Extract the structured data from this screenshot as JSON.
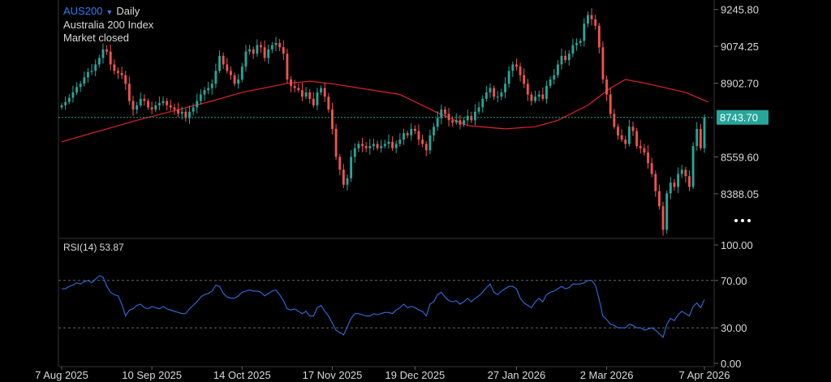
{
  "header": {
    "symbol": "AUS200",
    "interval": "Daily",
    "description": "Australia 200 Index",
    "status": "Market closed",
    "rsi_label": "RSI(14) 53.87"
  },
  "colors": {
    "up": "#26a69a",
    "down": "#ef5350",
    "ma": "#e0232a",
    "rsi": "#2f6fe0",
    "price_line": "#26a69a",
    "grid": "#333333",
    "text": "#d9d9d9",
    "accent": "#2f7ff7"
  },
  "chart_data": [
    {
      "type": "candlestick",
      "title": "AUS200 Daily",
      "current_price": 8743.7,
      "current_price_label": "8743.70",
      "y_ticks": [
        {
          "value": 9245.8,
          "label": "9245.80"
        },
        {
          "value": 9074.25,
          "label": "9074.25"
        },
        {
          "value": 8902.7,
          "label": "8902.70"
        },
        {
          "value": 8559.6,
          "label": "8559.60"
        },
        {
          "value": 8388.05,
          "label": "8388.05"
        }
      ],
      "ylim": [
        8180,
        9290
      ],
      "x_ticks": [
        "7 Aug 2025",
        "10 Sep 2025",
        "14 Oct 2025",
        "17 Nov 2025",
        "19 Dec 2025",
        "27 Jan 2026",
        "2 Mar 2026",
        "7 Apr 2026"
      ],
      "x_tick_index": [
        0,
        24,
        48,
        72,
        94,
        121,
        145,
        171
      ],
      "closes": [
        8800,
        8815,
        8835,
        8860,
        8885,
        8900,
        8930,
        8955,
        8960,
        8990,
        9020,
        9060,
        9050,
        8990,
        8960,
        8950,
        8940,
        8900,
        8820,
        8780,
        8800,
        8830,
        8820,
        8790,
        8780,
        8800,
        8810,
        8820,
        8800,
        8790,
        8780,
        8760,
        8770,
        8740,
        8770,
        8790,
        8820,
        8850,
        8870,
        8880,
        8900,
        8960,
        9030,
        8990,
        8960,
        8940,
        8900,
        8920,
        8980,
        9050,
        9060,
        9040,
        9080,
        9070,
        9020,
        9060,
        9080,
        9090,
        9070,
        9040,
        8920,
        8890,
        8880,
        8870,
        8840,
        8860,
        8830,
        8800,
        8860,
        8880,
        8840,
        8780,
        8690,
        8560,
        8500,
        8430,
        8460,
        8560,
        8600,
        8620,
        8610,
        8600,
        8610,
        8620,
        8600,
        8610,
        8620,
        8630,
        8600,
        8620,
        8640,
        8670,
        8660,
        8690,
        8680,
        8640,
        8620,
        8590,
        8660,
        8700,
        8740,
        8780,
        8760,
        8730,
        8720,
        8730,
        8710,
        8730,
        8750,
        8730,
        8770,
        8790,
        8830,
        8860,
        8880,
        8840,
        8840,
        8860,
        8900,
        8960,
        8990,
        8980,
        8940,
        8900,
        8850,
        8820,
        8840,
        8850,
        8830,
        8890,
        8920,
        8940,
        8990,
        9030,
        9010,
        9040,
        9080,
        9090,
        9100,
        9180,
        9220,
        9200,
        9170,
        9070,
        8920,
        8850,
        8760,
        8700,
        8660,
        8640,
        8620,
        8700,
        8680,
        8610,
        8600,
        8580,
        8530,
        8480,
        8400,
        8330,
        8220,
        8390,
        8440,
        8420,
        8480,
        8500,
        8470,
        8420,
        8610,
        8690,
        8600,
        8743.7
      ],
      "moving_average": {
        "start": 8630,
        "points": [
          [
            0,
            8630
          ],
          [
            20,
            8730
          ],
          [
            40,
            8820
          ],
          [
            48,
            8860
          ],
          [
            60,
            8902
          ],
          [
            66,
            8912
          ],
          [
            72,
            8900
          ],
          [
            90,
            8850
          ],
          [
            100,
            8765
          ],
          [
            108,
            8705
          ],
          [
            118,
            8690
          ],
          [
            126,
            8700
          ],
          [
            132,
            8730
          ],
          [
            140,
            8800
          ],
          [
            146,
            8880
          ],
          [
            150,
            8920
          ],
          [
            156,
            8900
          ],
          [
            166,
            8860
          ],
          [
            172,
            8815
          ]
        ]
      }
    },
    {
      "type": "line",
      "title": "RSI(14)",
      "last_value": 53.87,
      "y_ticks": [
        {
          "value": 100,
          "label": "100.00"
        },
        {
          "value": 70,
          "label": "70.00"
        },
        {
          "value": 30,
          "label": "30.00"
        },
        {
          "value": 0,
          "label": "0.00"
        }
      ],
      "ylim": [
        0,
        100
      ],
      "reference_lines": [
        70,
        30
      ],
      "values": [
        63,
        63,
        65,
        66,
        68,
        67,
        69,
        70,
        68,
        71,
        74,
        73,
        65,
        60,
        58,
        57,
        50,
        40,
        45,
        46,
        49,
        50,
        47,
        46,
        48,
        47,
        46,
        48,
        46,
        45,
        44,
        43,
        42,
        42,
        46,
        49,
        52,
        56,
        58,
        59,
        61,
        66,
        65,
        59,
        56,
        55,
        55,
        57,
        60,
        61,
        62,
        61,
        61,
        60,
        57,
        59,
        61,
        62,
        58,
        53,
        46,
        45,
        46,
        44,
        42,
        44,
        40,
        40,
        47,
        49,
        44,
        40,
        34,
        28,
        26,
        24,
        31,
        38,
        42,
        42,
        41,
        40,
        40,
        42,
        41,
        42,
        43,
        43,
        42,
        45,
        47,
        50,
        47,
        48,
        47,
        45,
        44,
        40,
        50,
        52,
        58,
        60,
        56,
        53,
        52,
        53,
        50,
        52,
        55,
        52,
        55,
        57,
        60,
        64,
        67,
        60,
        58,
        61,
        63,
        65,
        65,
        63,
        55,
        51,
        49,
        47,
        52,
        55,
        52,
        58,
        60,
        61,
        63,
        65,
        63,
        64,
        67,
        67,
        67,
        68,
        70,
        70,
        66,
        54,
        40,
        37,
        33,
        32,
        30,
        30,
        30,
        33,
        32,
        30,
        30,
        28,
        29,
        30,
        28,
        25,
        22,
        33,
        38,
        36,
        41,
        44,
        42,
        40,
        48,
        51,
        47,
        53.87
      ]
    }
  ]
}
